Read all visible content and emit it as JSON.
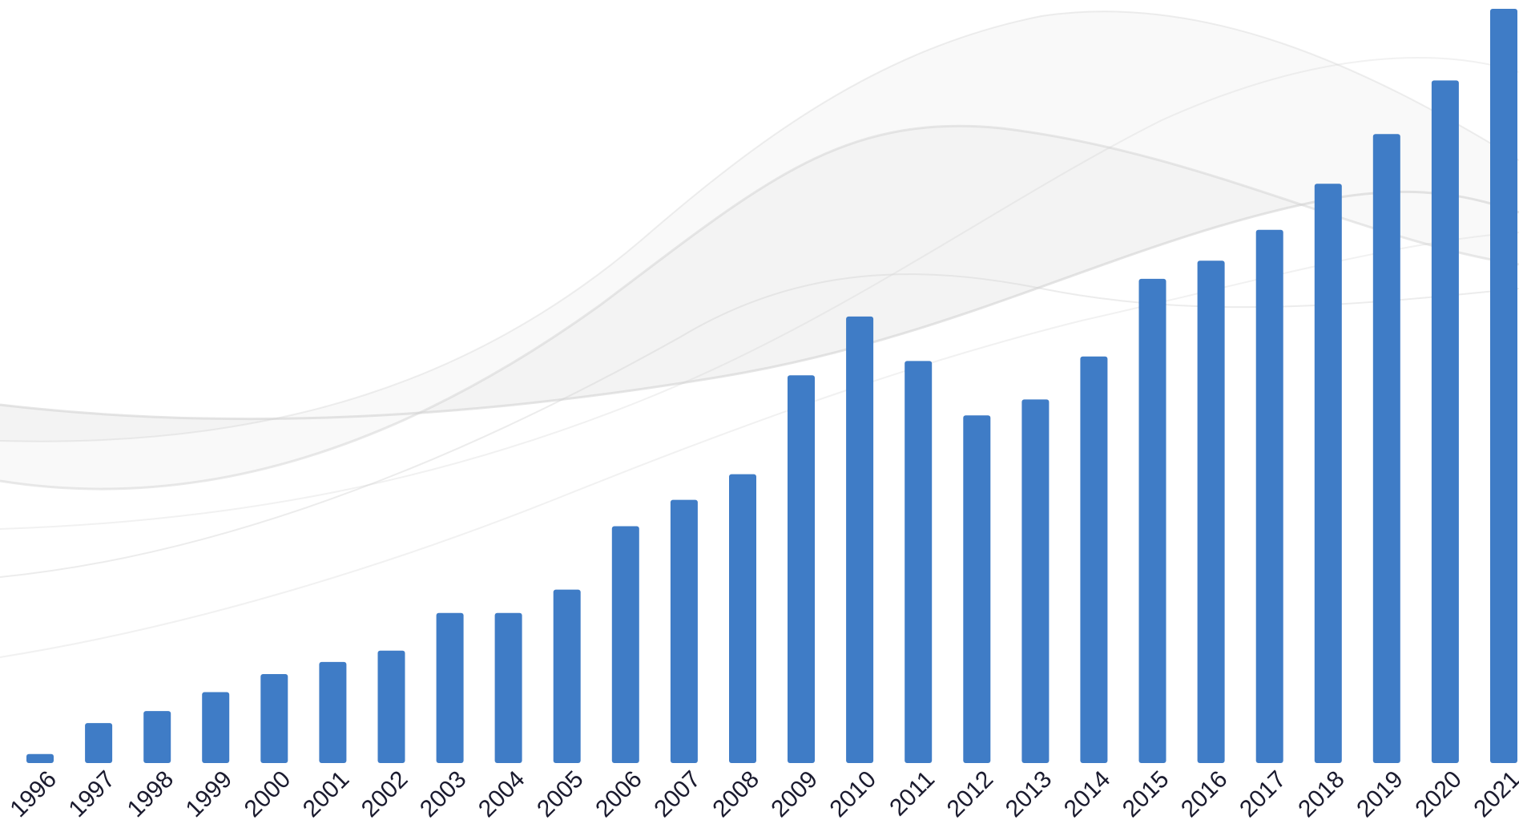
{
  "chart_data": {
    "type": "bar",
    "title": "",
    "xlabel": "",
    "ylabel": "",
    "categories": [
      "1996",
      "1997",
      "1998",
      "1999",
      "2000",
      "2001",
      "2002",
      "2003",
      "2004",
      "2005",
      "2006",
      "2007",
      "2008",
      "2009",
      "2010",
      "2011",
      "2012",
      "2013",
      "2014",
      "2015",
      "2016",
      "2017",
      "2018",
      "2019",
      "2020",
      "2021"
    ],
    "values": [
      12,
      53,
      69,
      94,
      118,
      134,
      149,
      199,
      199,
      230,
      314,
      349,
      383,
      514,
      592,
      533,
      461,
      482,
      539,
      642,
      666,
      707,
      768,
      834,
      905,
      1000
    ],
    "ylim": [
      0,
      1000
    ],
    "grid": false,
    "legend": "none",
    "bar_color": "#3f7cc6",
    "tick_label_color": "#1a1a2e",
    "background_color": "#ffffff",
    "decoration_color": "#cfcfcf"
  }
}
